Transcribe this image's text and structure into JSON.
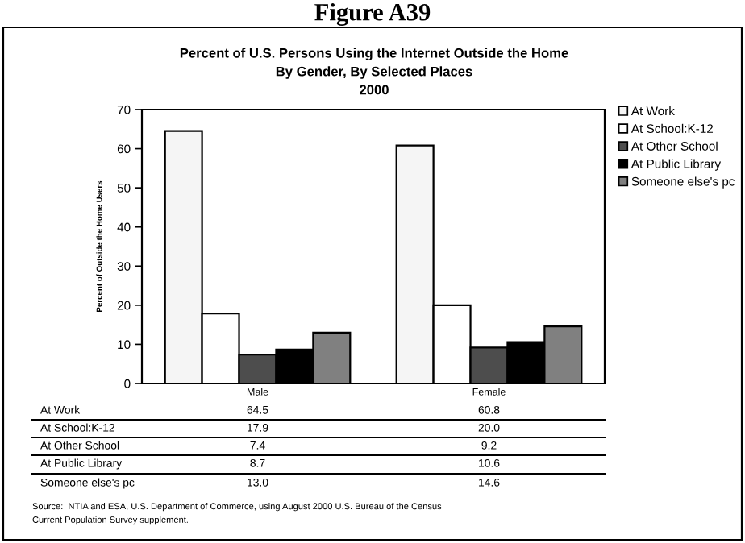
{
  "chart_data": {
    "type": "bar",
    "title": "Figure A39",
    "subtitle": "Percent of U.S. Persons Using the Internet Outside the Home\nBy Gender, By Selected Places\n2000",
    "ylabel": "Percent of Outside the Home Users",
    "categories": [
      "Male",
      "Female"
    ],
    "series": [
      {
        "name": "At Work",
        "color": "#f5f5f5",
        "values": [
          64.5,
          60.8
        ],
        "value_labels": [
          "64.5",
          "60.8"
        ]
      },
      {
        "name": "At School:K-12",
        "color": "#ffffff",
        "values": [
          17.9,
          20.0
        ],
        "value_labels": [
          "17.9",
          "20.0"
        ]
      },
      {
        "name": "At Other School",
        "color": "#4d4d4d",
        "values": [
          7.4,
          9.2
        ],
        "value_labels": [
          "7.4",
          "9.2"
        ]
      },
      {
        "name": "At Public Library",
        "color": "#000000",
        "values": [
          8.7,
          10.6
        ],
        "value_labels": [
          "8.7",
          "10.6"
        ]
      },
      {
        "name": "Someone else's pc",
        "color": "#808080",
        "values": [
          13.0,
          14.6
        ],
        "value_labels": [
          "13.0",
          "14.6"
        ]
      }
    ],
    "ylim": [
      0,
      70
    ],
    "yticks": [
      0,
      10,
      20,
      30,
      40,
      50,
      60,
      70
    ],
    "grid": false,
    "legend": "right",
    "annotations": [
      "Source:  NTIA and ESA, U.S. Department of Commerce, using August 2000 U.S. Bureau of the Census\nCurrent Population Survey supplement."
    ]
  }
}
